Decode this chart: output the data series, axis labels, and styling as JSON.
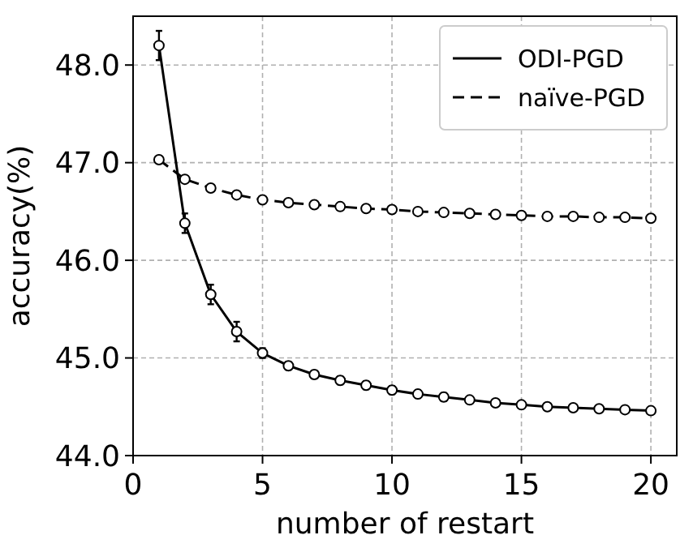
{
  "chart_data": {
    "type": "line",
    "xlabel": "number of restart",
    "ylabel": "accuracy(%)",
    "x": [
      1,
      2,
      3,
      4,
      5,
      6,
      7,
      8,
      9,
      10,
      11,
      12,
      13,
      14,
      15,
      16,
      17,
      18,
      19,
      20
    ],
    "series": [
      {
        "name": "ODI-PGD",
        "color": "#000000",
        "line_style": "solid",
        "values": [
          48.2,
          46.38,
          45.65,
          45.27,
          45.05,
          44.92,
          44.83,
          44.77,
          44.72,
          44.67,
          44.63,
          44.6,
          44.57,
          44.54,
          44.52,
          44.5,
          44.49,
          44.48,
          44.47,
          44.46
        ],
        "errors": [
          0.15,
          0.1,
          0.1,
          0.1,
          0.05,
          0.04,
          0.04,
          0.04,
          0.04,
          0.04,
          0.04,
          0.04,
          0.03,
          0.03,
          0.03,
          0.03,
          0.03,
          0.03,
          0.03,
          0.03
        ]
      },
      {
        "name": "naïve-PGD",
        "color": "#000000",
        "line_style": "dashed",
        "values": [
          47.03,
          46.83,
          46.74,
          46.67,
          46.62,
          46.59,
          46.57,
          46.55,
          46.53,
          46.52,
          46.5,
          46.49,
          46.48,
          46.47,
          46.46,
          46.45,
          46.45,
          46.44,
          46.44,
          46.43
        ]
      }
    ],
    "xlim": [
      0,
      21
    ],
    "xticks": [
      0,
      5,
      10,
      15,
      20
    ],
    "ylim": [
      44.0,
      48.5
    ],
    "yticks": [
      {
        "value": 44,
        "label": "44.0"
      },
      {
        "value": 45,
        "label": "45.0"
      },
      {
        "value": 46,
        "label": "46.0"
      },
      {
        "value": 47,
        "label": "47.0"
      },
      {
        "value": 48,
        "label": "48.0"
      }
    ],
    "grid": true,
    "legend": "top right",
    "marker": "circle"
  }
}
